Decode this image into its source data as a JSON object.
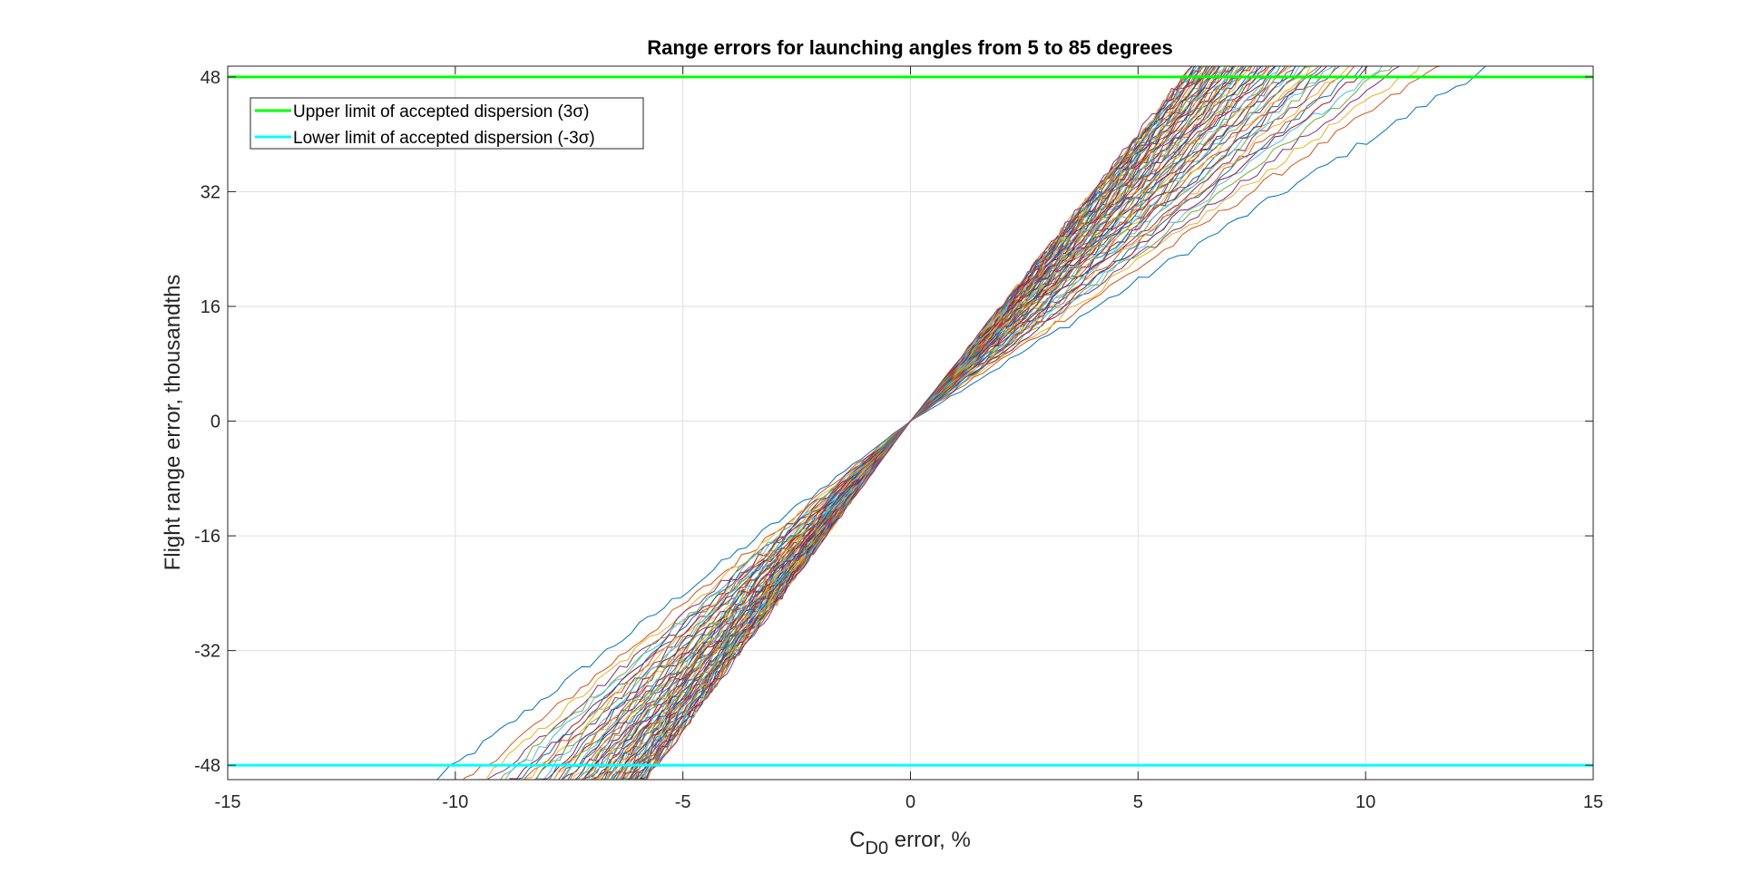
{
  "chart_data": {
    "type": "line",
    "title": "Range errors for launching angles from 5 to 85 degrees",
    "xlabel_main": "C",
    "xlabel_sub": "D0",
    "xlabel_rest": " error, %",
    "ylabel": "Flight range error, thousandths",
    "xlim": [
      -15,
      15
    ],
    "ylim": [
      -50,
      49.5
    ],
    "xticks": [
      -15,
      -10,
      -5,
      0,
      5,
      10,
      15
    ],
    "yticks": [
      -48,
      -32,
      -16,
      0,
      16,
      32,
      48
    ],
    "grid": true,
    "legend_placement": "top-left",
    "reference_lines": [
      {
        "name": "Upper limit of accepted dispersion (3σ)",
        "y": 48,
        "color": "#00ff00"
      },
      {
        "name": "Lower limit of accepted dispersion (-3σ)",
        "y": -48,
        "color": "#00ffff"
      }
    ],
    "series_slopes": {
      "min_pos": 3.9,
      "max_pos": 8.0,
      "min_neg": 4.8,
      "max_neg": 8.6,
      "count": 81
    },
    "series_colors": [
      "#0072bd",
      "#d95319",
      "#edb120",
      "#7e2f8e",
      "#77ac30",
      "#4dbeee",
      "#a2142f"
    ]
  }
}
